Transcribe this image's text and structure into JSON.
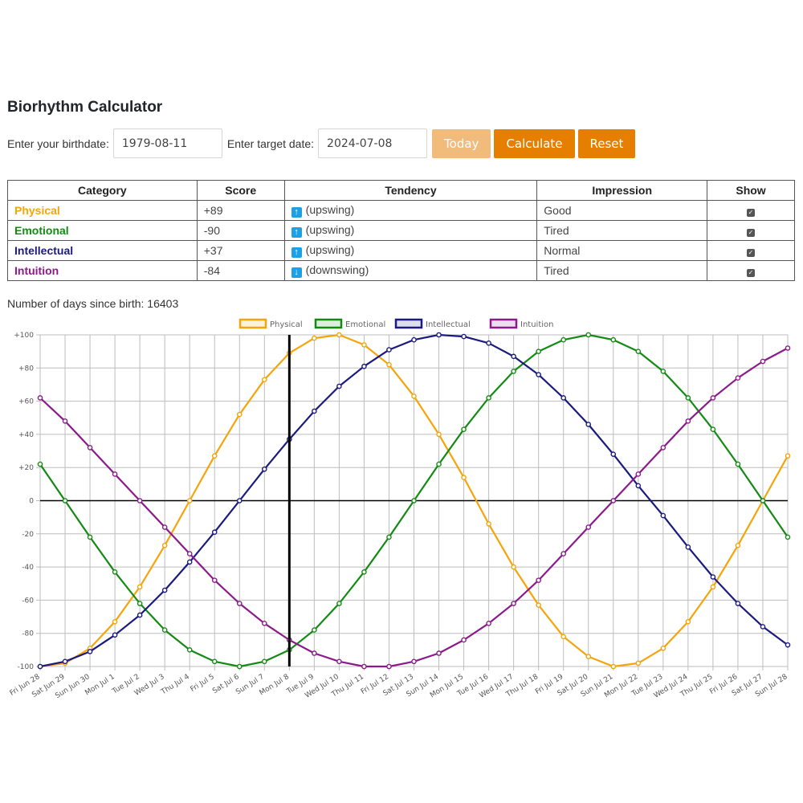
{
  "app": {
    "title": "Biorhythm Calculator"
  },
  "controls": {
    "birth_label": "Enter your birthdate:",
    "birth_value": "1979-08-11",
    "target_label": "Enter target date:",
    "target_value": "2024-07-08",
    "today_label": "Today",
    "calculate_label": "Calculate",
    "reset_label": "Reset"
  },
  "table": {
    "headers": [
      "Category",
      "Score",
      "Tendency",
      "Impression",
      "Show"
    ],
    "rows": [
      {
        "category": "Physical",
        "color": "#f5a40a",
        "score": "+89",
        "arrow": "up",
        "tendency": "(upswing)",
        "impression": "Good",
        "show": true
      },
      {
        "category": "Emotional",
        "color": "#138b13",
        "score": "-90",
        "arrow": "up",
        "tendency": "(upswing)",
        "impression": "Tired",
        "show": true
      },
      {
        "category": "Intellectual",
        "color": "#1a1a80",
        "score": "+37",
        "arrow": "up",
        "tendency": "(upswing)",
        "impression": "Normal",
        "show": true
      },
      {
        "category": "Intuition",
        "color": "#8b1a8b",
        "score": "-84",
        "arrow": "down",
        "tendency": "(downswing)",
        "impression": "Tired",
        "show": true
      }
    ]
  },
  "days": {
    "text": "Number of days since birth: 16403"
  },
  "chart_data": {
    "type": "line",
    "x": [
      "Fri Jun 28",
      "Sat Jun 29",
      "Sun Jun 30",
      "Mon Jul 1",
      "Tue Jul 2",
      "Wed Jul 3",
      "Thu Jul 4",
      "Fri Jul 5",
      "Sat Jul 6",
      "Sun Jul 7",
      "Mon Jul 8",
      "Tue Jul 9",
      "Wed Jul 10",
      "Thu Jul 11",
      "Fri Jul 12",
      "Sat Jul 13",
      "Sun Jul 14",
      "Mon Jul 15",
      "Tue Jul 16",
      "Wed Jul 17",
      "Thu Jul 18",
      "Fri Jul 19",
      "Sat Jul 20",
      "Sun Jul 21",
      "Mon Jul 22",
      "Tue Jul 23",
      "Wed Jul 24",
      "Thu Jul 25",
      "Fri Jul 26",
      "Sat Jul 27",
      "Sun Jul 28"
    ],
    "ylim": [
      -100,
      100
    ],
    "yticks": [
      100,
      80,
      60,
      40,
      20,
      0,
      -20,
      -40,
      -60,
      -80,
      -100
    ],
    "ytick_labels": [
      "+100",
      "+80",
      "+60",
      "+40",
      "+20",
      "0",
      "-20",
      "-40",
      "-60",
      "-80",
      "-100"
    ],
    "target_index": 10,
    "grid": true,
    "legend_position": "top-center",
    "series": [
      {
        "name": "Physical",
        "color": "#f5a40a",
        "values": [
          -100,
          -98,
          -89,
          -73,
          -52,
          -27,
          0,
          27,
          52,
          73,
          89,
          98,
          100,
          94,
          82,
          63,
          40,
          14,
          -14,
          -40,
          -63,
          -82,
          -94,
          -100,
          -98,
          -89,
          -73,
          -52,
          -27,
          0,
          27
        ]
      },
      {
        "name": "Emotional",
        "color": "#138b13",
        "values": [
          22,
          0,
          -22,
          -43,
          -62,
          -78,
          -90,
          -97,
          -100,
          -97,
          -90,
          -78,
          -62,
          -43,
          -22,
          0,
          22,
          43,
          62,
          78,
          90,
          97,
          100,
          97,
          90,
          78,
          62,
          43,
          22,
          0,
          -22
        ]
      },
      {
        "name": "Intellectual",
        "color": "#1a1a80",
        "values": [
          -100,
          -97,
          -91,
          -81,
          -69,
          -54,
          -37,
          -19,
          0,
          19,
          37,
          54,
          69,
          81,
          91,
          97,
          100,
          99,
          95,
          87,
          76,
          62,
          46,
          28,
          9,
          -9,
          -28,
          -46,
          -62,
          -76,
          -87
        ]
      },
      {
        "name": "Intuition",
        "color": "#8b1a8b",
        "values": [
          62,
          48,
          32,
          16,
          0,
          -16,
          -32,
          -48,
          -62,
          -74,
          -84,
          -92,
          -97,
          -100,
          -100,
          -97,
          -92,
          -84,
          -74,
          -62,
          -48,
          -32,
          -16,
          0,
          16,
          32,
          48,
          62,
          74,
          84,
          92
        ]
      }
    ]
  }
}
